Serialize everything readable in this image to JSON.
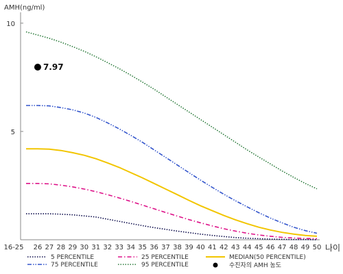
{
  "chart_data": {
    "type": "line",
    "xlabel": "나이",
    "ylabel": "AMH(ng/ml)",
    "x_ticks": [
      "16-25",
      "26",
      "27",
      "28",
      "29",
      "30",
      "31",
      "32",
      "33",
      "34",
      "35",
      "36",
      "37",
      "38",
      "39",
      "40",
      "41",
      "42",
      "43",
      "44",
      "45",
      "46",
      "47",
      "48",
      "49",
      "50"
    ],
    "y_ticks": [
      "10",
      "5"
    ],
    "ylim": [
      0,
      10.5
    ],
    "grid": false,
    "legend_position": "bottom",
    "series": [
      {
        "name": "5 PERCENTILE",
        "color": "#0a0a4a",
        "dash": "dotted",
        "values": [
          1.2,
          1.2,
          1.2,
          1.18,
          1.15,
          1.1,
          1.05,
          0.95,
          0.85,
          0.75,
          0.65,
          0.56,
          0.48,
          0.4,
          0.33,
          0.26,
          0.2,
          0.15,
          0.1,
          0.07,
          0.05,
          0.03,
          0.02,
          0.01,
          0.01,
          0.0
        ]
      },
      {
        "name": "75 PERCENTILE",
        "color": "#3355cc",
        "dash": "dashdotdot",
        "values": [
          6.2,
          6.2,
          6.18,
          6.1,
          6.0,
          5.85,
          5.65,
          5.4,
          5.12,
          4.82,
          4.5,
          4.15,
          3.8,
          3.45,
          3.1,
          2.75,
          2.42,
          2.1,
          1.8,
          1.52,
          1.25,
          1.0,
          0.78,
          0.58,
          0.42,
          0.3
        ]
      },
      {
        "name": "25 PERCENTILE",
        "color": "#dd1188",
        "dash": "dashdot",
        "values": [
          2.6,
          2.6,
          2.58,
          2.52,
          2.44,
          2.34,
          2.22,
          2.08,
          1.93,
          1.77,
          1.6,
          1.43,
          1.26,
          1.09,
          0.93,
          0.78,
          0.64,
          0.51,
          0.4,
          0.3,
          0.22,
          0.16,
          0.11,
          0.08,
          0.06,
          0.05
        ]
      },
      {
        "name": "95 PERCENTILE",
        "color": "#2a7a3a",
        "dash": "dotted",
        "values": [
          9.6,
          9.45,
          9.3,
          9.12,
          8.92,
          8.7,
          8.45,
          8.18,
          7.9,
          7.6,
          7.28,
          6.95,
          6.6,
          6.25,
          5.9,
          5.55,
          5.2,
          4.85,
          4.5,
          4.15,
          3.82,
          3.5,
          3.18,
          2.88,
          2.6,
          2.35
        ]
      },
      {
        "name": "MEDIAN(50 PERCENTILE)",
        "color": "#f2c500",
        "dash": "solid",
        "values": [
          4.2,
          4.2,
          4.18,
          4.12,
          4.02,
          3.9,
          3.74,
          3.55,
          3.34,
          3.1,
          2.86,
          2.6,
          2.34,
          2.08,
          1.82,
          1.57,
          1.34,
          1.12,
          0.92,
          0.74,
          0.58,
          0.45,
          0.34,
          0.26,
          0.2,
          0.16
        ]
      }
    ],
    "point": {
      "name": "수진자의 AMH 농도",
      "x": "26",
      "y": 7.97,
      "label": "7.97",
      "color": "#000000"
    }
  }
}
